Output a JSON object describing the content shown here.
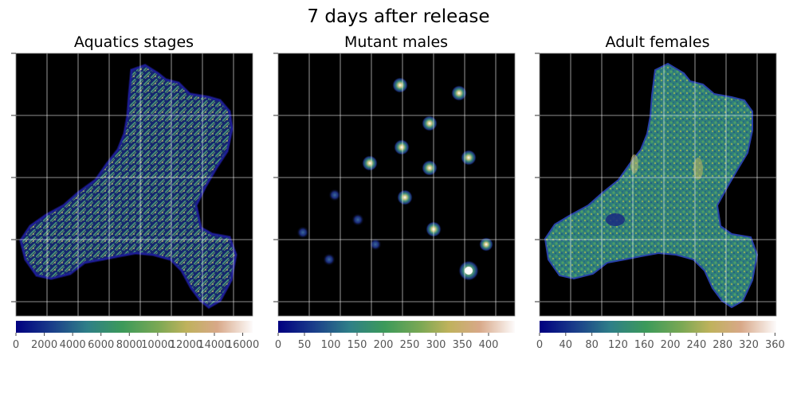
{
  "figure": {
    "title": "7 days after release"
  },
  "chart_data": [
    {
      "type": "heatmap",
      "title": "Aquatics stages",
      "colormap": "gist_earth",
      "background": "#000000",
      "grid": true,
      "colorbar": {
        "ticks": [
          "0",
          "2000",
          "4000",
          "6000",
          "8000",
          "10000",
          "12000",
          "14000",
          "16000"
        ],
        "range": [
          0,
          16700
        ]
      },
      "content": "island-textured"
    },
    {
      "type": "heatmap",
      "title": "Mutant males",
      "colormap": "gist_earth",
      "background": "#000000",
      "grid": true,
      "colorbar": {
        "ticks": [
          "0",
          "50",
          "100",
          "150",
          "200",
          "250",
          "300",
          "350",
          "400"
        ],
        "range": [
          0,
          450
        ]
      },
      "content": "release-spots"
    },
    {
      "type": "heatmap",
      "title": "Adult females",
      "colormap": "gist_earth",
      "background": "#000000",
      "grid": true,
      "colorbar": {
        "ticks": [
          "0",
          "40",
          "80",
          "120",
          "160",
          "200",
          "240",
          "280",
          "320",
          "360"
        ],
        "range": [
          0,
          362
        ]
      },
      "content": "island-smooth"
    }
  ]
}
